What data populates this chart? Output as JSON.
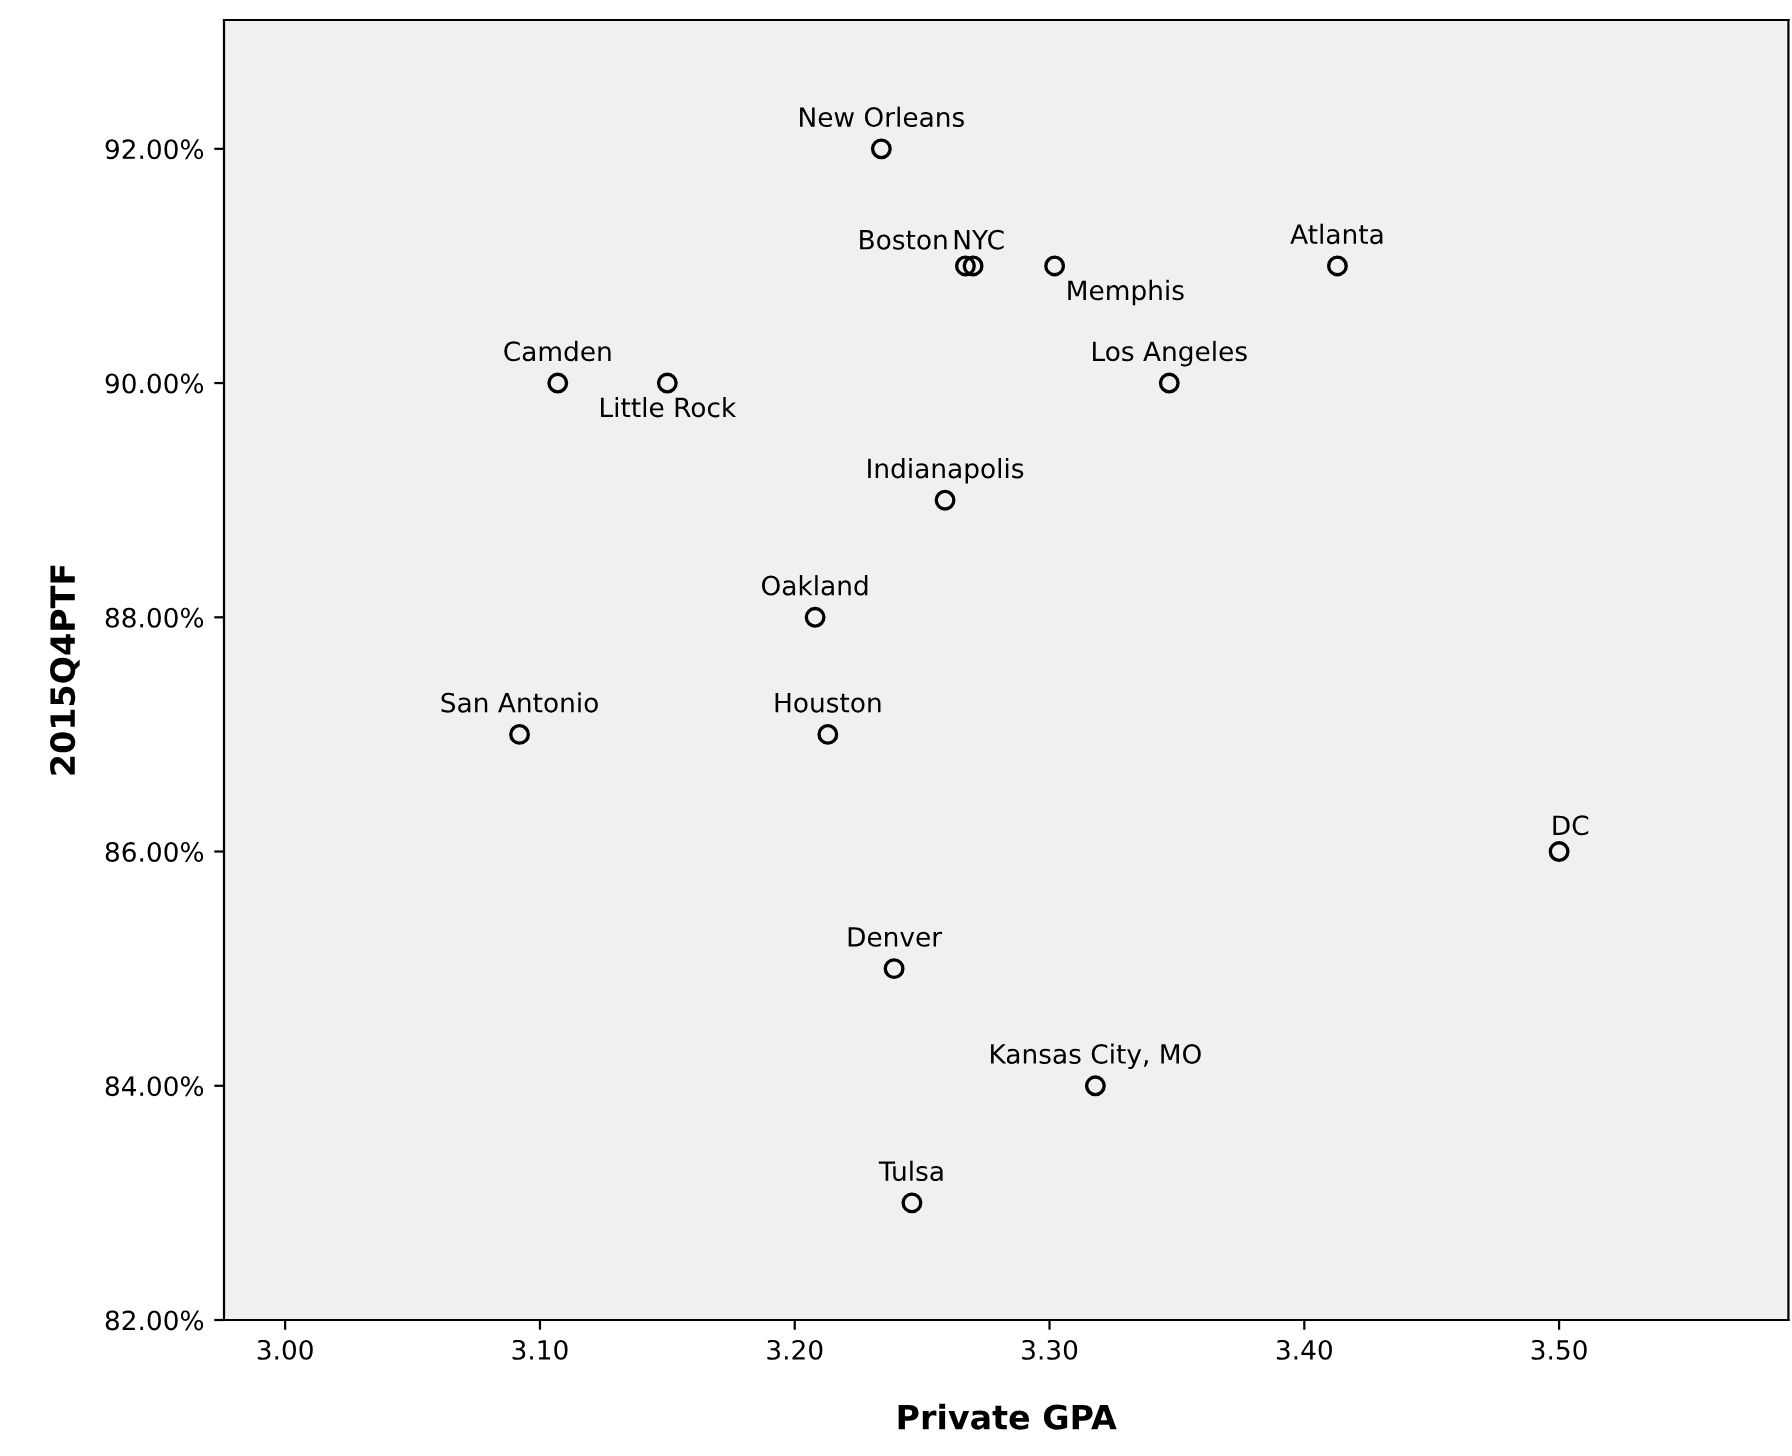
{
  "chart_data": {
    "type": "scatter",
    "xlabel": "Private GPA",
    "ylabel": "2015Q4PTF",
    "x": [
      3.234,
      3.267,
      3.27,
      3.302,
      3.413,
      3.107,
      3.15,
      3.347,
      3.259,
      3.208,
      3.092,
      3.213,
      3.5,
      3.239,
      3.318,
      3.246
    ],
    "series": [
      {
        "color": "#000000",
        "values": [
          92,
          91,
          91,
          91,
          91,
          90,
          90,
          90,
          89,
          88,
          87,
          87,
          86,
          85,
          84,
          83
        ]
      }
    ],
    "annotations": [
      {
        "text": "New Orleans",
        "x": 3.234,
        "y": 92
      },
      {
        "text": "Boston",
        "x": 3.267,
        "y": 91
      },
      {
        "text": "NYC",
        "x": 3.27,
        "y": 91
      },
      {
        "text": "Memphis",
        "x": 3.302,
        "y": 91
      },
      {
        "text": "Atlanta",
        "x": 3.413,
        "y": 91
      },
      {
        "text": "Camden",
        "x": 3.107,
        "y": 90
      },
      {
        "text": "Little Rock",
        "x": 3.15,
        "y": 90
      },
      {
        "text": "Los Angeles",
        "x": 3.347,
        "y": 90
      },
      {
        "text": "Indianapolis",
        "x": 3.259,
        "y": 89
      },
      {
        "text": "Oakland",
        "x": 3.208,
        "y": 88
      },
      {
        "text": "San Antonio",
        "x": 3.092,
        "y": 87
      },
      {
        "text": "Houston",
        "x": 3.213,
        "y": 87
      },
      {
        "text": "DC",
        "x": 3.5,
        "y": 86
      },
      {
        "text": "Denver",
        "x": 3.239,
        "y": 85
      },
      {
        "text": "Kansas City, MO",
        "x": 3.318,
        "y": 84
      },
      {
        "text": "Tulsa",
        "x": 3.246,
        "y": 83
      }
    ],
    "xlim": [
      2.976,
      3.59
    ],
    "ylim": [
      82,
      93.1
    ],
    "xticks": [
      {
        "value": 3.0,
        "label": "3.00"
      },
      {
        "value": 3.1,
        "label": "3.10"
      },
      {
        "value": 3.2,
        "label": "3.20"
      },
      {
        "value": 3.3,
        "label": "3.30"
      },
      {
        "value": 3.4,
        "label": "3.40"
      },
      {
        "value": 3.5,
        "label": "3.50"
      }
    ],
    "yticks": [
      {
        "value": 82,
        "label": "82.00%"
      },
      {
        "value": 84,
        "label": "84.00%"
      },
      {
        "value": 86,
        "label": "86.00%"
      },
      {
        "value": 88,
        "label": "88.00%"
      },
      {
        "value": 90,
        "label": "90.00%"
      },
      {
        "value": 92,
        "label": "92.00%"
      }
    ],
    "marker": "circle",
    "grid": false,
    "legend": false
  }
}
